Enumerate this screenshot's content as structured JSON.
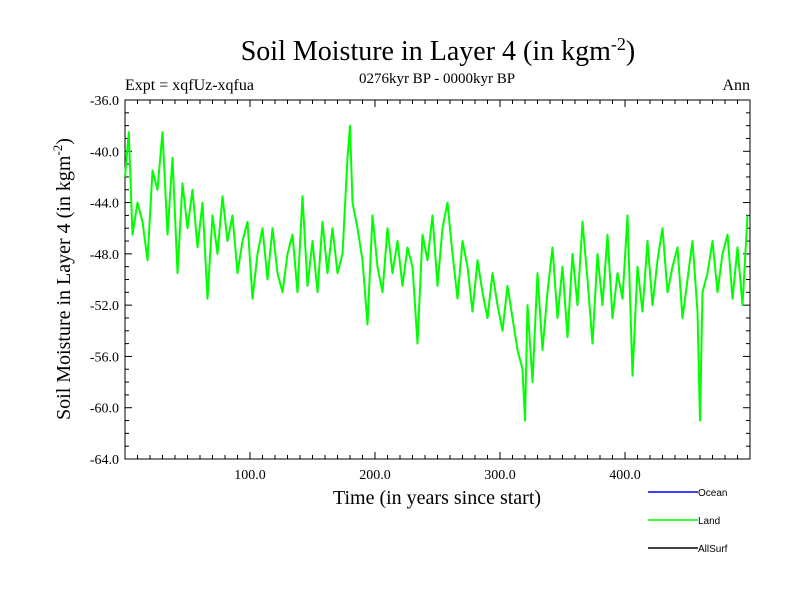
{
  "chart_data": {
    "type": "line",
    "title_main": "Soil Moisture in Layer 4 (in kgm",
    "title_sup": "-2",
    "title_close": ")",
    "subtitle": "0276kyr BP - 0000kyr BP",
    "left_label": "Expt = xqfUz-xqfua",
    "right_label": "Ann",
    "xlabel": "Time (in years since start)",
    "ylabel_main": "Soil Moisture in Layer 4 (in kgm",
    "ylabel_sup": "-2",
    "ylabel_close": ")",
    "xlim": [
      0,
      500
    ],
    "ylim": [
      -64,
      -36
    ],
    "x_ticks": [
      100,
      200,
      300,
      400
    ],
    "x_tick_labels": [
      "100.0",
      "200.0",
      "300.0",
      "400.0"
    ],
    "y_ticks": [
      -36,
      -40,
      -44,
      -48,
      -52,
      -56,
      -60,
      -64
    ],
    "y_tick_labels": [
      "-36.0",
      "-40.0",
      "-44.0",
      "-48.0",
      "-52.0",
      "-56.0",
      "-60.0",
      "-64.0"
    ],
    "legend": [
      {
        "name": "Ocean",
        "color": "#0000ff"
      },
      {
        "name": "Land",
        "color": "#00ff00"
      },
      {
        "name": "AllSurf",
        "color": "#000000"
      }
    ],
    "series": [
      {
        "name": "Land",
        "color": "#00ff00",
        "x": [
          0,
          3,
          6,
          10,
          14,
          18,
          22,
          26,
          30,
          34,
          38,
          42,
          46,
          50,
          54,
          58,
          62,
          66,
          70,
          74,
          78,
          82,
          86,
          90,
          94,
          98,
          102,
          106,
          110,
          114,
          118,
          122,
          126,
          130,
          134,
          138,
          142,
          146,
          150,
          154,
          158,
          162,
          166,
          170,
          174,
          178,
          180,
          182,
          186,
          190,
          194,
          198,
          202,
          206,
          210,
          214,
          218,
          222,
          226,
          230,
          234,
          238,
          242,
          246,
          250,
          254,
          258,
          262,
          266,
          270,
          274,
          278,
          282,
          286,
          290,
          294,
          298,
          302,
          306,
          310,
          314,
          318,
          320,
          322,
          326,
          330,
          334,
          338,
          342,
          346,
          350,
          354,
          358,
          362,
          366,
          370,
          374,
          378,
          382,
          386,
          390,
          394,
          398,
          402,
          406,
          410,
          414,
          418,
          422,
          426,
          430,
          434,
          438,
          442,
          446,
          450,
          454,
          458,
          460,
          462,
          466,
          470,
          474,
          478,
          482,
          486,
          490,
          494,
          498
        ],
        "values": [
          -42.0,
          -38.5,
          -46.5,
          -44.0,
          -45.5,
          -48.5,
          -41.5,
          -43.0,
          -38.5,
          -46.5,
          -40.5,
          -49.5,
          -42.5,
          -46.0,
          -43.0,
          -47.5,
          -44.0,
          -51.5,
          -45.0,
          -48.0,
          -43.5,
          -47.0,
          -45.0,
          -49.5,
          -47.0,
          -45.5,
          -51.5,
          -48.0,
          -46.0,
          -50.0,
          -46.0,
          -49.5,
          -51.0,
          -48.0,
          -46.5,
          -51.0,
          -43.5,
          -50.5,
          -47.0,
          -51.0,
          -45.5,
          -49.5,
          -46.0,
          -49.5,
          -48.0,
          -40.5,
          -38.0,
          -44.0,
          -46.0,
          -48.5,
          -53.5,
          -45.0,
          -49.0,
          -51.0,
          -46.0,
          -49.5,
          -47.0,
          -50.5,
          -47.5,
          -49.0,
          -55.0,
          -46.5,
          -48.5,
          -45.0,
          -50.5,
          -46.0,
          -44.0,
          -48.0,
          -51.5,
          -47.0,
          -49.0,
          -52.5,
          -48.5,
          -51.0,
          -53.0,
          -49.5,
          -52.0,
          -54.0,
          -50.5,
          -53.0,
          -55.5,
          -57.0,
          -61.0,
          -52.0,
          -58.0,
          -49.5,
          -55.5,
          -51.0,
          -47.5,
          -53.0,
          -49.0,
          -54.5,
          -48.0,
          -52.0,
          -45.5,
          -50.0,
          -55.0,
          -48.0,
          -52.0,
          -46.5,
          -53.0,
          -49.5,
          -51.5,
          -45.0,
          -57.5,
          -49.0,
          -52.5,
          -47.0,
          -52.0,
          -48.5,
          -46.0,
          -51.0,
          -49.0,
          -47.5,
          -53.0,
          -50.0,
          -47.0,
          -52.5,
          -61.0,
          -51.0,
          -49.5,
          -47.0,
          -51.0,
          -48.0,
          -46.5,
          -51.5,
          -47.5,
          -52.0,
          -45.0
        ]
      }
    ]
  }
}
